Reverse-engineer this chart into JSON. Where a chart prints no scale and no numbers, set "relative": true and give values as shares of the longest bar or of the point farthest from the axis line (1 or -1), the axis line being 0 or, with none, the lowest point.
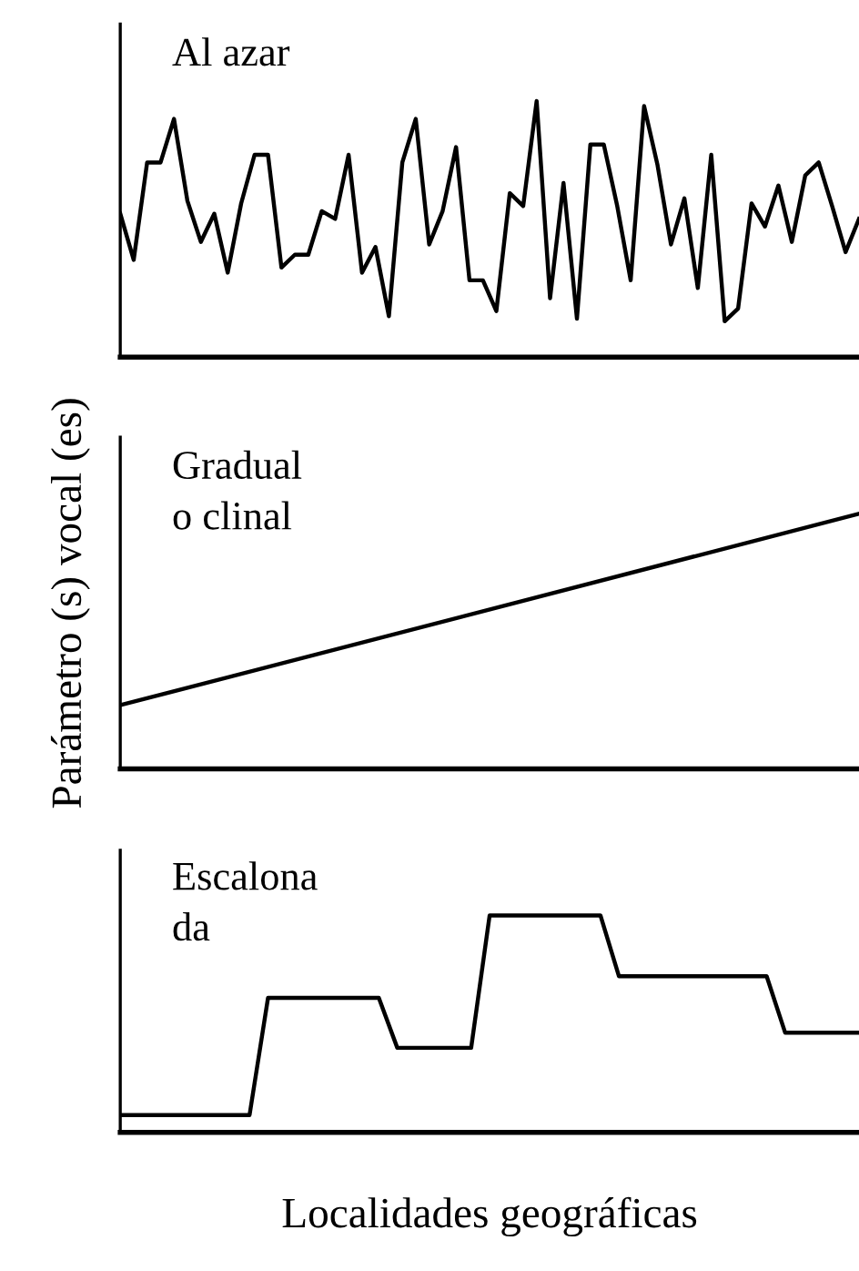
{
  "chart_data": [
    {
      "type": "line",
      "relative": true,
      "annotations": [
        "Al azar"
      ],
      "categories": [
        null,
        null,
        null,
        null,
        null,
        null,
        null,
        null,
        null,
        null,
        null,
        null,
        null,
        null,
        null,
        null,
        null,
        null,
        null,
        null,
        null,
        null,
        null,
        null,
        null,
        null,
        null,
        null,
        null,
        null,
        null,
        null,
        null,
        null,
        null,
        null,
        null,
        null,
        null,
        null,
        null,
        null,
        null,
        null,
        null,
        null,
        null,
        null,
        null,
        null,
        null,
        null,
        null,
        null,
        null,
        null
      ],
      "series": [
        {
          "color": "#000000",
          "values": [
            0.56,
            0.38,
            0.76,
            0.76,
            0.93,
            0.61,
            0.45,
            0.56,
            0.33,
            0.6,
            0.79,
            0.79,
            0.35,
            0.4,
            0.4,
            0.57,
            0.54,
            0.79,
            0.33,
            0.43,
            0.16,
            0.76,
            0.93,
            0.44,
            0.57,
            0.82,
            0.3,
            0.3,
            0.18,
            0.64,
            0.59,
            1.0,
            0.23,
            0.68,
            0.15,
            0.83,
            0.83,
            0.59,
            0.3,
            0.98,
            0.75,
            0.44,
            0.62,
            0.27,
            0.79,
            0.14,
            0.19,
            0.6,
            0.51,
            0.67,
            0.45,
            0.71,
            0.76,
            0.59,
            0.41,
            0.54
          ]
        }
      ]
    },
    {
      "type": "line",
      "relative": true,
      "annotations": [
        "Gradual\no clinal"
      ],
      "ylabel": "Parámetro (s) vocal (es)",
      "categories": [
        null,
        null
      ],
      "series": [
        {
          "color": "#000000",
          "values": [
            0.25,
            1.0
          ]
        }
      ]
    },
    {
      "type": "line",
      "relative": true,
      "annotations": [
        "Escalona\nda"
      ],
      "xlabel": "Localidades geográficas",
      "categories": [
        null,
        null,
        null,
        null,
        null,
        null,
        null,
        null,
        null,
        null,
        null,
        null,
        null,
        null,
        null,
        null,
        null,
        null,
        null,
        null,
        null,
        null,
        null,
        null,
        null,
        null,
        null,
        null,
        null,
        null,
        null,
        null,
        null,
        null,
        null,
        null,
        null,
        null,
        null,
        null,
        null
      ],
      "series": [
        {
          "color": "#000000",
          "values": [
            0.08,
            0.08,
            0.08,
            0.08,
            0.08,
            0.08,
            0.08,
            0.08,
            0.62,
            0.62,
            0.62,
            0.62,
            0.62,
            0.62,
            0.62,
            0.39,
            0.39,
            0.39,
            0.39,
            0.39,
            1.0,
            1.0,
            1.0,
            1.0,
            1.0,
            1.0,
            1.0,
            0.72,
            0.72,
            0.72,
            0.72,
            0.72,
            0.72,
            0.72,
            0.72,
            0.72,
            0.46,
            0.46,
            0.46,
            0.46,
            0.46
          ]
        }
      ]
    }
  ]
}
